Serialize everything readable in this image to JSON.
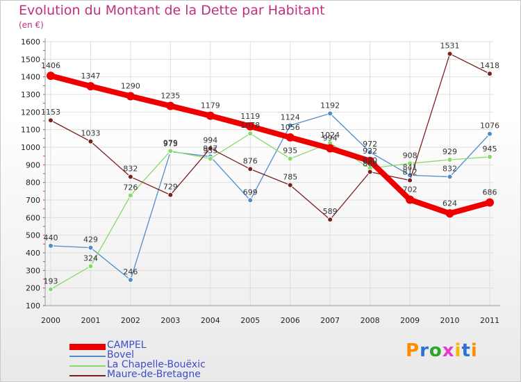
{
  "title": "Evolution du Montant de la Dette par Habitant",
  "subtitle": "(en €)",
  "chart_data": {
    "type": "line",
    "title": "Evolution du Montant de la Dette par Habitant",
    "ylabel": "(en €)",
    "x": [
      "2000",
      "2001",
      "2002",
      "2003",
      "2004",
      "2005",
      "2006",
      "2007",
      "2008",
      "2009",
      "2010",
      "2011"
    ],
    "ylim": [
      100,
      1600
    ],
    "yticks": [
      100,
      200,
      300,
      400,
      500,
      600,
      700,
      800,
      900,
      1000,
      1100,
      1200,
      1300,
      1400,
      1500,
      1600
    ],
    "grid": true,
    "legend": "bottom-left",
    "series": [
      {
        "name": "CAMPEL",
        "color": "#ee0000",
        "values": [
          1406,
          1347,
          1290,
          1235,
          1179,
          1119,
          1056,
          994,
          922,
          702,
          624,
          686
        ],
        "labels": [
          "1406",
          "1347",
          "1290",
          "1235",
          "1179",
          "1119",
          "1056",
          "994",
          "922",
          "702",
          "624",
          "686"
        ]
      },
      {
        "name": "Bovel",
        "color": "#4f8cc9",
        "values": [
          440,
          429,
          246,
          975,
          947,
          699,
          1124,
          1192,
          972,
          841,
          832,
          1076
        ],
        "labels": [
          "440",
          "429",
          "246",
          "975",
          "947",
          "699",
          "1124",
          "1192",
          "972",
          "841",
          "832",
          "1076"
        ]
      },
      {
        "name": "La Chapelle-Bouëxic",
        "color": "#88d96a",
        "values": [
          193,
          324,
          726,
          979,
          935,
          1078,
          935,
          1024,
          880,
          908,
          929,
          945
        ],
        "labels": [
          "193",
          "324",
          "726",
          "979",
          "935",
          "1078",
          "935",
          "1024",
          "880",
          "908",
          "929",
          "945"
        ]
      },
      {
        "name": "Maure-de-Bretagne",
        "color": "#7a1f1f",
        "values": [
          1153,
          1033,
          832,
          729,
          994,
          876,
          785,
          589,
          860,
          812,
          1531,
          1418
        ],
        "labels": [
          "1153",
          "1033",
          "832",
          "729",
          "994",
          "876",
          "785",
          "589",
          "860",
          "812",
          "1531",
          "1418"
        ]
      }
    ]
  },
  "logo": {
    "text": "Proxiti",
    "colors": [
      "#ff8c00",
      "#2f6fd6",
      "#2aa62a",
      "#e23bd0",
      "#ffb400",
      "#2f6fd6",
      "#ff8c00"
    ]
  }
}
